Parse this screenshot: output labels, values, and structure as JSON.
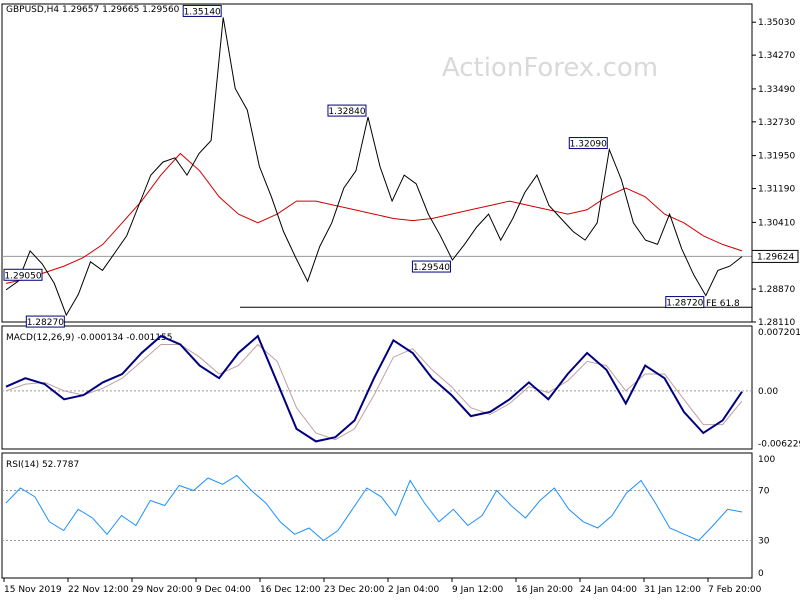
{
  "chart_data": [
    {
      "type": "candlestick",
      "title": "GBPUSD,H4  1.29657 1.29665 1.29560 1.29624",
      "watermark": "ActionForex.com",
      "ylim": [
        1.2811,
        1.3545
      ],
      "y_ticks": [
        "1.35030",
        "1.34270",
        "1.33490",
        "1.32730",
        "1.31950",
        "1.31190",
        "1.30410",
        "1.28870",
        "1.28110"
      ],
      "current_price": "1.29624",
      "price_path": [
        1.2885,
        1.2905,
        1.2975,
        1.2945,
        1.29,
        1.2827,
        1.2875,
        1.295,
        1.293,
        1.297,
        1.301,
        1.308,
        1.315,
        1.318,
        1.319,
        1.315,
        1.32,
        1.323,
        1.3514,
        1.335,
        1.33,
        1.317,
        1.31,
        1.302,
        1.296,
        1.2905,
        1.2985,
        1.304,
        1.312,
        1.316,
        1.3284,
        1.317,
        1.309,
        1.315,
        1.313,
        1.306,
        1.301,
        1.2954,
        1.299,
        1.303,
        1.306,
        1.3,
        1.305,
        1.311,
        1.315,
        1.308,
        1.305,
        1.302,
        1.3,
        1.304,
        1.3209,
        1.314,
        1.304,
        1.3,
        1.299,
        1.306,
        1.298,
        1.292,
        1.2872,
        1.293,
        1.294,
        1.2962
      ],
      "moving_average": [
        1.29,
        1.291,
        1.2925,
        1.294,
        1.296,
        1.299,
        1.304,
        1.309,
        1.315,
        1.32,
        1.316,
        1.31,
        1.306,
        1.304,
        1.306,
        1.309,
        1.309,
        1.308,
        1.307,
        1.306,
        1.305,
        1.3045,
        1.305,
        1.306,
        1.307,
        1.308,
        1.309,
        1.308,
        1.307,
        1.306,
        1.307,
        1.31,
        1.312,
        1.31,
        1.306,
        1.304,
        1.301,
        1.299,
        1.2975
      ],
      "annotations": [
        {
          "label": "1.35140",
          "value": 1.3514
        },
        {
          "label": "1.32840",
          "value": 1.3284
        },
        {
          "label": "1.32090",
          "value": 1.3209
        },
        {
          "label": "1.29540",
          "value": 1.2954
        },
        {
          "label": "1.29050",
          "value": 1.2905
        },
        {
          "label": "1.28720",
          "value": 1.2872
        },
        {
          "label": "1.28270",
          "value": 1.2827
        }
      ],
      "fib_label": "FE 61.8",
      "fib_level": 1.2845
    },
    {
      "type": "line",
      "title": "MACD(12,26,9) -0.000134 -0.001155",
      "ylim": [
        -0.0069,
        0.0077
      ],
      "y_ticks": [
        "0.007201",
        "0.00",
        "-0.006229"
      ],
      "macd": [
        0.0005,
        0.0015,
        0.0008,
        -0.001,
        -0.0005,
        0.001,
        0.002,
        0.0045,
        0.0065,
        0.0055,
        0.003,
        0.0015,
        0.0045,
        0.0065,
        0.001,
        -0.0045,
        -0.006,
        -0.0055,
        -0.0035,
        0.0015,
        0.006,
        0.0045,
        0.0015,
        -0.0005,
        -0.003,
        -0.0025,
        -0.001,
        0.001,
        -0.001,
        0.002,
        0.0045,
        0.0025,
        -0.0015,
        0.003,
        0.0015,
        -0.0025,
        -0.005,
        -0.0035,
        -0.0001
      ],
      "signal": [
        0.0,
        0.0008,
        0.001,
        0.0,
        -0.0005,
        0.0003,
        0.0015,
        0.0035,
        0.0055,
        0.0055,
        0.004,
        0.002,
        0.003,
        0.0055,
        0.0035,
        -0.002,
        -0.005,
        -0.0058,
        -0.0045,
        -0.0005,
        0.004,
        0.005,
        0.0025,
        0.0005,
        -0.002,
        -0.0028,
        -0.0015,
        0.0005,
        -0.0002,
        0.0012,
        0.0035,
        0.003,
        0.0,
        0.002,
        0.002,
        -0.001,
        -0.004,
        -0.004,
        -0.0012
      ]
    },
    {
      "type": "line",
      "title": "RSI(14) 52.7787",
      "ylim": [
        0,
        100
      ],
      "y_ticks": [
        "100",
        "70",
        "30",
        "0"
      ],
      "values": [
        60,
        72,
        65,
        45,
        38,
        55,
        48,
        35,
        50,
        42,
        62,
        58,
        74,
        70,
        80,
        75,
        82,
        70,
        60,
        45,
        35,
        40,
        30,
        38,
        55,
        72,
        65,
        50,
        78,
        60,
        45,
        55,
        42,
        50,
        70,
        58,
        48,
        62,
        72,
        55,
        45,
        40,
        50,
        68,
        78,
        60,
        40,
        35,
        30,
        42,
        55,
        52.8
      ]
    }
  ],
  "x_axis": {
    "labels": [
      "15 Nov 2019",
      "22 Nov 12:00",
      "29 Nov 20:00",
      "9 Dec 04:00",
      "16 Dec 12:00",
      "23 Dec 20:00",
      "2 Jan 04:00",
      "9 Jan 12:00",
      "16 Jan 20:00",
      "24 Jan 04:00",
      "31 Jan 12:00",
      "7 Feb 20:00"
    ]
  },
  "colors": {
    "price": "#000000",
    "ma": "#d10000",
    "macd": "#000080",
    "signal": "#c0a0a0",
    "rsi": "#1e90ff",
    "label_border": "#000080",
    "grid": "#9a9a9a"
  }
}
